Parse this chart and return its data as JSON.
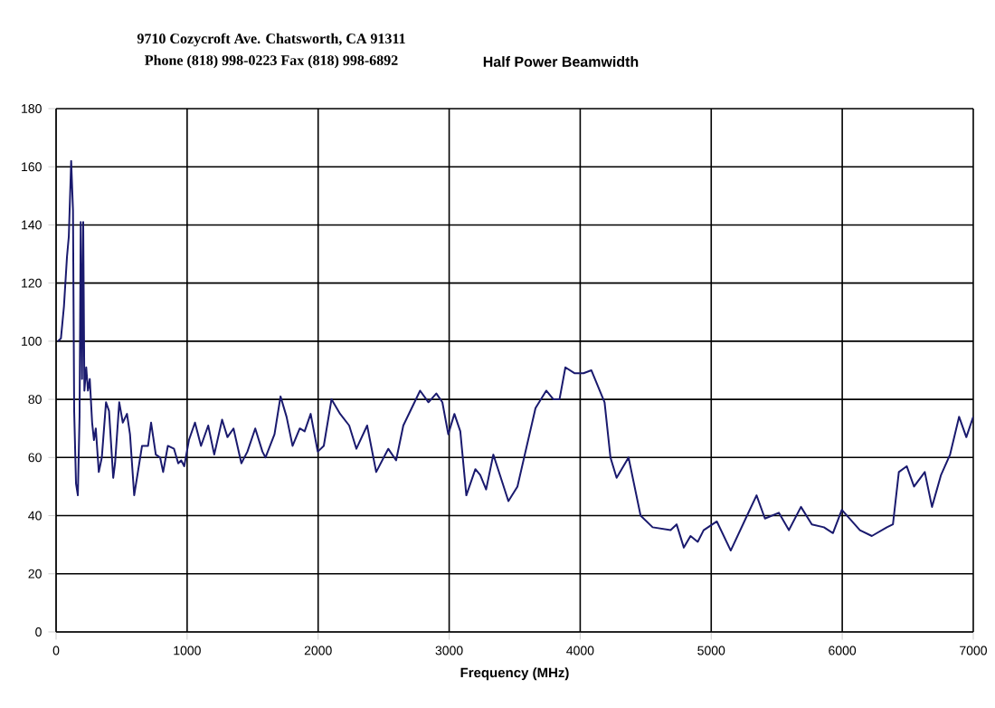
{
  "chart_data": {
    "type": "line",
    "title": "Half Power Beamwidth",
    "xlabel": "Frequency (MHz)",
    "annotations": [
      "9710 Cozycroft Ave. Chatsworth, CA 91311",
      "Phone (818) 998-0223 Fax (818) 998-6892"
    ],
    "xlim": [
      0,
      7000
    ],
    "ylim": [
      0,
      180
    ],
    "xticks": [
      0,
      1000,
      2000,
      3000,
      4000,
      5000,
      6000,
      7000
    ],
    "yticks": [
      0,
      20,
      40,
      60,
      80,
      100,
      120,
      140,
      160,
      180
    ],
    "grid": true,
    "marker": "none",
    "line_style": "solid",
    "series": [
      {
        "color": "#1a1a6e",
        "x": [
          14,
          37,
          60,
          83,
          97,
          115,
          129,
          138,
          152,
          166,
          179,
          188,
          198,
          207,
          216,
          230,
          243,
          257,
          275,
          289,
          303,
          326,
          349,
          381,
          404,
          436,
          450,
          482,
          509,
          541,
          564,
          596,
          656,
          702,
          725,
          761,
          794,
          817,
          853,
          900,
          932,
          955,
          978,
          1014,
          1060,
          1106,
          1161,
          1207,
          1267,
          1308,
          1354,
          1414,
          1460,
          1520,
          1575,
          1598,
          1667,
          1713,
          1759,
          1805,
          1860,
          1897,
          1943,
          1997,
          2043,
          2102,
          2168,
          2237,
          2292,
          2374,
          2443,
          2535,
          2595,
          2650,
          2778,
          2842,
          2902,
          2948,
          2993,
          3040,
          3085,
          3131,
          3200,
          3237,
          3282,
          3337,
          3452,
          3521,
          3659,
          3741,
          3796,
          3842,
          3887,
          3956,
          4025,
          4085,
          4186,
          4231,
          4278,
          4369,
          4461,
          4553,
          4690,
          4736,
          4791,
          4842,
          4897,
          4942,
          5043,
          5149,
          5263,
          5346,
          5410,
          5516,
          5593,
          5685,
          5768,
          5860,
          5929,
          5997,
          6135,
          6226,
          6341,
          6387,
          6432,
          6492,
          6548,
          6630,
          6685,
          6754,
          6823,
          6892,
          6947,
          7000
        ],
        "values": [
          100,
          101,
          112,
          129,
          136,
          162,
          145,
          76,
          51,
          47,
          74,
          141,
          87,
          141,
          83,
          91,
          83,
          87,
          72,
          66,
          70,
          55,
          60,
          79,
          76,
          53,
          58,
          79,
          72,
          75,
          68,
          47,
          64,
          64,
          72,
          61,
          60,
          55,
          64,
          63,
          58,
          59,
          57,
          66,
          72,
          64,
          71,
          61,
          73,
          67,
          70,
          58,
          62,
          70,
          62,
          60,
          68,
          81,
          74,
          64,
          70,
          69,
          75,
          62,
          64,
          80,
          75,
          71,
          63,
          71,
          55,
          63,
          59,
          71,
          83,
          79,
          82,
          79,
          68,
          75,
          69,
          47,
          56,
          54,
          49,
          61,
          45,
          50,
          77,
          83,
          80,
          80,
          91,
          89,
          89,
          90,
          79,
          60,
          53,
          60,
          40,
          36,
          35,
          37,
          29,
          33,
          31,
          35,
          38,
          28,
          39,
          47,
          39,
          41,
          35,
          43,
          37,
          36,
          34,
          42,
          35,
          33,
          36,
          37,
          55,
          57,
          50,
          55,
          43,
          54,
          61,
          74,
          67,
          74
        ]
      }
    ]
  }
}
